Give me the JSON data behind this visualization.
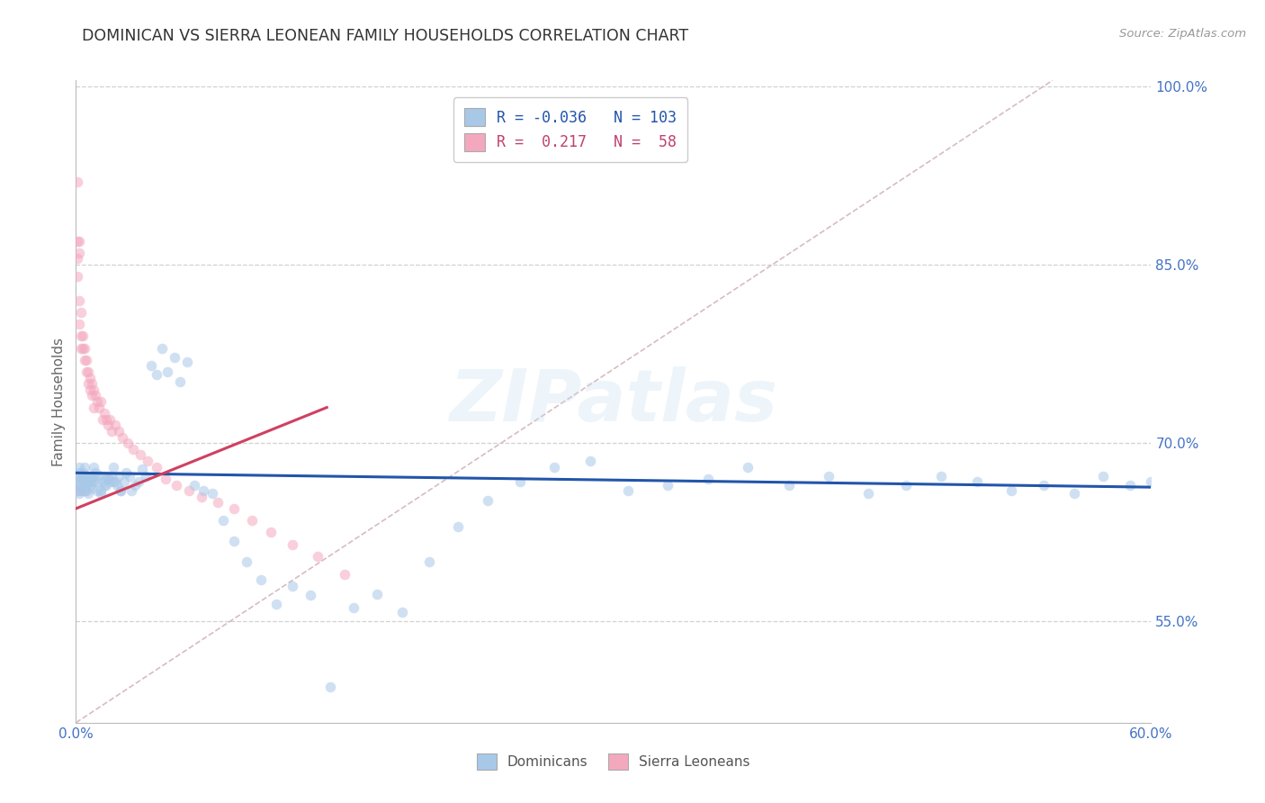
{
  "title": "DOMINICAN VS SIERRA LEONEAN FAMILY HOUSEHOLDS CORRELATION CHART",
  "source": "Source: ZipAtlas.com",
  "ylabel": "Family Households",
  "xmin": 0.0,
  "xmax": 0.6,
  "ymin": 0.465,
  "ymax": 1.005,
  "xtick_positions": [
    0.0,
    0.1,
    0.2,
    0.3,
    0.4,
    0.5,
    0.6
  ],
  "xtick_labels": [
    "0.0%",
    "",
    "",
    "",
    "",
    "",
    "60.0%"
  ],
  "ytick_positions": [
    0.55,
    0.7,
    0.85,
    1.0
  ],
  "ytick_labels": [
    "55.0%",
    "70.0%",
    "85.0%",
    "100.0%"
  ],
  "blue_line_x": [
    0.0,
    0.6
  ],
  "blue_line_y": [
    0.675,
    0.663
  ],
  "pink_line_x": [
    0.0,
    0.14
  ],
  "pink_line_y": [
    0.645,
    0.73
  ],
  "diag_line_x": [
    0.0,
    0.545
  ],
  "diag_line_y": [
    0.465,
    1.005
  ],
  "watermark": "ZIPatlas",
  "dot_size": 70,
  "dot_alpha": 0.55,
  "blue_color": "#a8c8e8",
  "pink_color": "#f4a8be",
  "blue_line_color": "#2255aa",
  "pink_line_color": "#d04060",
  "diag_line_color": "#d0b0b8",
  "grid_color": "#cccccc",
  "title_color": "#333333",
  "axis_label_color": "#4472c4",
  "background_color": "#ffffff",
  "dom_x": [
    0.001,
    0.001,
    0.002,
    0.002,
    0.002,
    0.003,
    0.003,
    0.004,
    0.004,
    0.005,
    0.005,
    0.005,
    0.006,
    0.006,
    0.007,
    0.007,
    0.008,
    0.009,
    0.009,
    0.01,
    0.01,
    0.011,
    0.012,
    0.013,
    0.014,
    0.015,
    0.016,
    0.017,
    0.018,
    0.019,
    0.02,
    0.021,
    0.022,
    0.023,
    0.024,
    0.025,
    0.027,
    0.028,
    0.03,
    0.031,
    0.033,
    0.035,
    0.037,
    0.039,
    0.042,
    0.045,
    0.048,
    0.051,
    0.055,
    0.058,
    0.062,
    0.066,
    0.071,
    0.076,
    0.082,
    0.088,
    0.095,
    0.103,
    0.112,
    0.121,
    0.131,
    0.142,
    0.155,
    0.168,
    0.182,
    0.197,
    0.213,
    0.23,
    0.248,
    0.267,
    0.287,
    0.308,
    0.33,
    0.353,
    0.375,
    0.398,
    0.42,
    0.442,
    0.463,
    0.483,
    0.503,
    0.522,
    0.54,
    0.557,
    0.573,
    0.588,
    0.6,
    0.001,
    0.002,
    0.003,
    0.004,
    0.005,
    0.006,
    0.007,
    0.008,
    0.009,
    0.01,
    0.012,
    0.014,
    0.016,
    0.018,
    0.021,
    0.025
  ],
  "dom_y": [
    0.672,
    0.668,
    0.68,
    0.675,
    0.665,
    0.67,
    0.66,
    0.675,
    0.668,
    0.68,
    0.673,
    0.66,
    0.672,
    0.665,
    0.67,
    0.668,
    0.672,
    0.668,
    0.662,
    0.68,
    0.672,
    0.675,
    0.668,
    0.673,
    0.66,
    0.668,
    0.672,
    0.665,
    0.67,
    0.668,
    0.672,
    0.68,
    0.668,
    0.665,
    0.672,
    0.66,
    0.668,
    0.675,
    0.672,
    0.66,
    0.665,
    0.668,
    0.678,
    0.672,
    0.765,
    0.758,
    0.78,
    0.76,
    0.772,
    0.752,
    0.768,
    0.665,
    0.66,
    0.658,
    0.635,
    0.618,
    0.6,
    0.585,
    0.565,
    0.58,
    0.572,
    0.495,
    0.562,
    0.573,
    0.558,
    0.6,
    0.63,
    0.652,
    0.668,
    0.68,
    0.685,
    0.66,
    0.665,
    0.67,
    0.68,
    0.665,
    0.672,
    0.658,
    0.665,
    0.672,
    0.668,
    0.66,
    0.665,
    0.658,
    0.672,
    0.665,
    0.668,
    0.66,
    0.658,
    0.665,
    0.672,
    0.668,
    0.66,
    0.658,
    0.665,
    0.672,
    0.668,
    0.66,
    0.658,
    0.665,
    0.672,
    0.668,
    0.66
  ],
  "sl_x": [
    0.001,
    0.001,
    0.001,
    0.001,
    0.001,
    0.002,
    0.002,
    0.002,
    0.002,
    0.003,
    0.003,
    0.003,
    0.003,
    0.004,
    0.004,
    0.004,
    0.005,
    0.005,
    0.005,
    0.006,
    0.006,
    0.007,
    0.007,
    0.008,
    0.008,
    0.009,
    0.009,
    0.01,
    0.01,
    0.011,
    0.012,
    0.013,
    0.014,
    0.015,
    0.016,
    0.017,
    0.018,
    0.019,
    0.02,
    0.022,
    0.024,
    0.026,
    0.029,
    0.032,
    0.036,
    0.04,
    0.045,
    0.05,
    0.056,
    0.063,
    0.07,
    0.079,
    0.088,
    0.098,
    0.109,
    0.121,
    0.135,
    0.15
  ],
  "sl_y": [
    0.92,
    0.87,
    0.855,
    0.84,
    0.66,
    0.87,
    0.86,
    0.82,
    0.8,
    0.81,
    0.79,
    0.78,
    0.66,
    0.79,
    0.78,
    0.67,
    0.78,
    0.77,
    0.66,
    0.77,
    0.76,
    0.76,
    0.75,
    0.755,
    0.745,
    0.75,
    0.74,
    0.745,
    0.73,
    0.74,
    0.735,
    0.73,
    0.735,
    0.72,
    0.725,
    0.72,
    0.715,
    0.72,
    0.71,
    0.715,
    0.71,
    0.705,
    0.7,
    0.695,
    0.69,
    0.685,
    0.68,
    0.67,
    0.665,
    0.66,
    0.655,
    0.65,
    0.645,
    0.635,
    0.625,
    0.615,
    0.605,
    0.59
  ]
}
